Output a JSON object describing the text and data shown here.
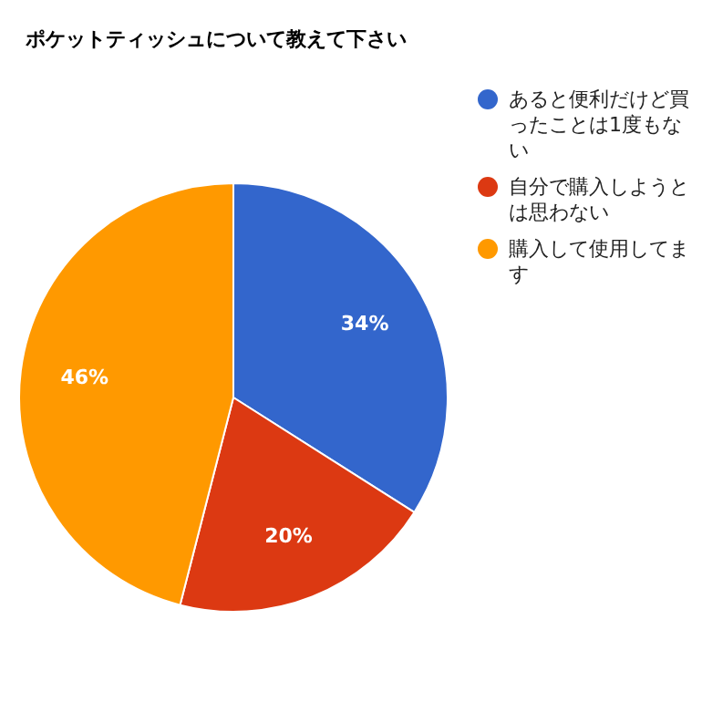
{
  "chart_data": {
    "type": "pie",
    "title": "ポケットティッシュについて教えて下さい",
    "categories": [
      "あると便利だけど買ったことは1度もない",
      "自分で購入しようとは思わない",
      "購入して使用してます"
    ],
    "values": [
      34,
      20,
      46
    ],
    "colors": [
      "#3366cc",
      "#dc3912",
      "#ff9900"
    ],
    "value_labels": [
      "34%",
      "20%",
      "46%"
    ],
    "legend": "right"
  }
}
